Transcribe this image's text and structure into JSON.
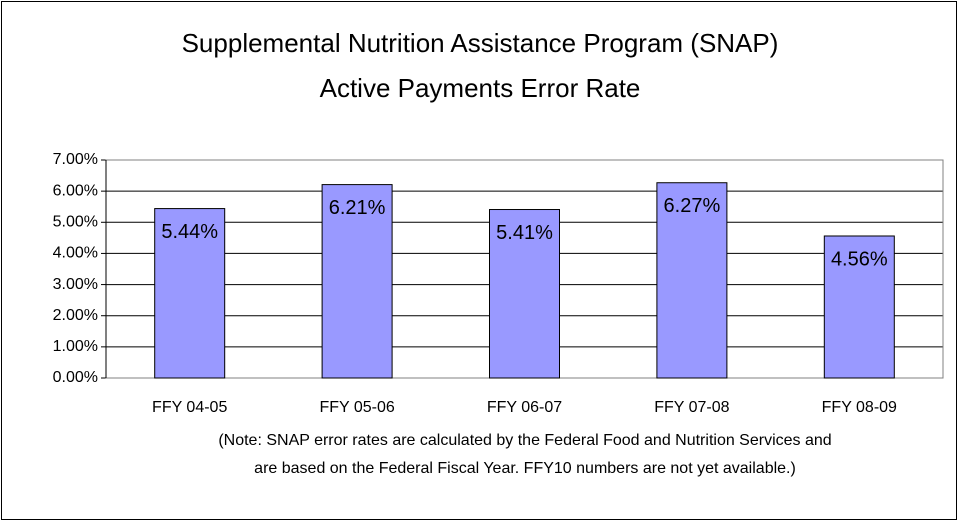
{
  "chart_data": {
    "type": "bar",
    "title": [
      "Supplemental Nutrition Assistance Program (SNAP)",
      "Active Payments Error Rate"
    ],
    "categories": [
      "FFY 04-05",
      "FFY 05-06",
      "FFY 06-07",
      "FFY 07-08",
      "FFY 08-09"
    ],
    "values": [
      5.44,
      6.21,
      5.41,
      6.27,
      4.56
    ],
    "value_labels": [
      "5.44%",
      "6.21%",
      "5.41%",
      "6.27%",
      "4.56%"
    ],
    "color": "#9999ff",
    "ylim": [
      0,
      7
    ],
    "yticks": [
      {
        "value": 0,
        "label": "0.00%"
      },
      {
        "value": 1,
        "label": "1.00%"
      },
      {
        "value": 2,
        "label": "2.00%"
      },
      {
        "value": 3,
        "label": "3.00%"
      },
      {
        "value": 4,
        "label": "4.00%"
      },
      {
        "value": 5,
        "label": "5.00%"
      },
      {
        "value": 6,
        "label": "6.00%"
      },
      {
        "value": 7,
        "label": "7.00%"
      }
    ],
    "grid": true,
    "annotations": [
      "(Note:  SNAP error rates are calculated by the Federal Food and Nutrition Services and",
      "are based on the Federal Fiscal Year.  FFY10 numbers are not yet available.)"
    ]
  }
}
